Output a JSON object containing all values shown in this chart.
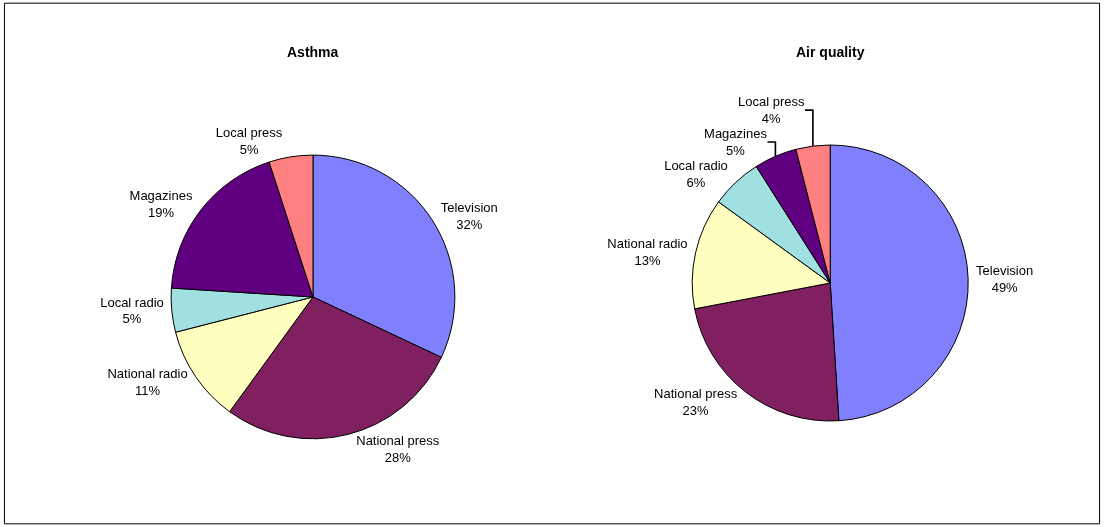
{
  "chart_data": [
    {
      "type": "pie",
      "title": "Asthma",
      "categories": [
        "Television",
        "National press",
        "National radio",
        "Local radio",
        "Magazines",
        "Local press"
      ],
      "values": [
        32,
        28,
        11,
        5,
        19,
        5
      ],
      "value_labels": [
        "32%",
        "28%",
        "11%",
        "5%",
        "19%",
        "5%"
      ],
      "colors": [
        "#8080ff",
        "#802060",
        "#ffffc0",
        "#a0e0e0",
        "#600080",
        "#ff8080"
      ],
      "legend": false
    },
    {
      "type": "pie",
      "title": "Air quality",
      "categories": [
        "Television",
        "National press",
        "National radio",
        "Local radio",
        "Magazines",
        "Local press"
      ],
      "values": [
        49,
        23,
        13,
        6,
        5,
        4
      ],
      "value_labels": [
        "49%",
        "23%",
        "13%",
        "6%",
        "5%",
        "4%"
      ],
      "colors": [
        "#8080ff",
        "#802060",
        "#ffffc0",
        "#a0e0e0",
        "#600080",
        "#ff8080"
      ],
      "legend": false
    }
  ]
}
